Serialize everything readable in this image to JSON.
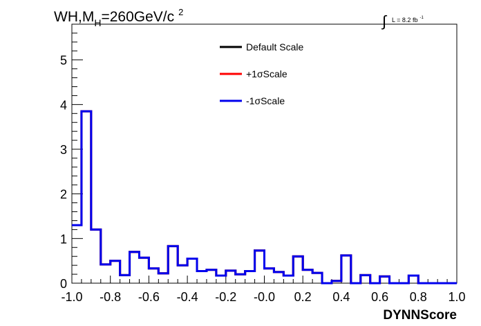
{
  "chart_data": {
    "type": "line",
    "title_prefix": "WH,M",
    "title_sub": "H",
    "title_main": "=260GeV/c",
    "title_sup": "2",
    "lumi_label": "L = 8.2 fb",
    "lumi_sup": "-1",
    "xlabel": "DYNNScore",
    "ylabel": "",
    "xlim": [
      -1.0,
      1.0
    ],
    "ylim": [
      0,
      5.8
    ],
    "x_ticks": [
      "-1.0",
      "-0.8",
      "-0.6",
      "-0.4",
      "-0.2",
      "-0.0",
      "0.2",
      "0.4",
      "0.6",
      "0.8",
      "1.0"
    ],
    "y_ticks": [
      "0",
      "1",
      "2",
      "3",
      "4",
      "5"
    ],
    "legend_position": "top-center",
    "bin_edges_start": -1.0,
    "bin_width": 0.05,
    "series": [
      {
        "name": "Default Scale",
        "color": "#000000",
        "values": [
          1.3,
          3.85,
          1.2,
          0.42,
          0.5,
          0.18,
          0.7,
          0.57,
          0.33,
          0.22,
          0.83,
          0.4,
          0.55,
          0.27,
          0.3,
          0.17,
          0.28,
          0.2,
          0.27,
          0.73,
          0.33,
          0.25,
          0.17,
          0.6,
          0.3,
          0.23,
          0.0,
          0.05,
          0.62,
          0.0,
          0.18,
          0.0,
          0.15,
          0.0,
          0.0,
          0.17,
          0.0,
          0.0,
          0.0,
          0.0
        ]
      },
      {
        "name": "+1σScale",
        "color": "#ff0000",
        "values": [
          1.3,
          3.85,
          1.2,
          0.42,
          0.5,
          0.18,
          0.7,
          0.57,
          0.33,
          0.22,
          0.83,
          0.4,
          0.55,
          0.27,
          0.3,
          0.17,
          0.28,
          0.2,
          0.27,
          0.73,
          0.33,
          0.25,
          0.17,
          0.6,
          0.3,
          0.23,
          0.0,
          0.05,
          0.62,
          0.0,
          0.18,
          0.0,
          0.15,
          0.0,
          0.0,
          0.17,
          0.0,
          0.0,
          0.0,
          0.0
        ]
      },
      {
        "name": "-1σScale",
        "color": "#0000ee",
        "values": [
          1.3,
          3.85,
          1.2,
          0.42,
          0.5,
          0.18,
          0.7,
          0.57,
          0.33,
          0.22,
          0.83,
          0.4,
          0.55,
          0.27,
          0.3,
          0.17,
          0.28,
          0.2,
          0.27,
          0.73,
          0.33,
          0.25,
          0.17,
          0.6,
          0.3,
          0.23,
          0.0,
          0.05,
          0.62,
          0.0,
          0.18,
          0.0,
          0.15,
          0.0,
          0.0,
          0.17,
          0.0,
          0.0,
          0.0,
          0.0
        ]
      }
    ]
  }
}
